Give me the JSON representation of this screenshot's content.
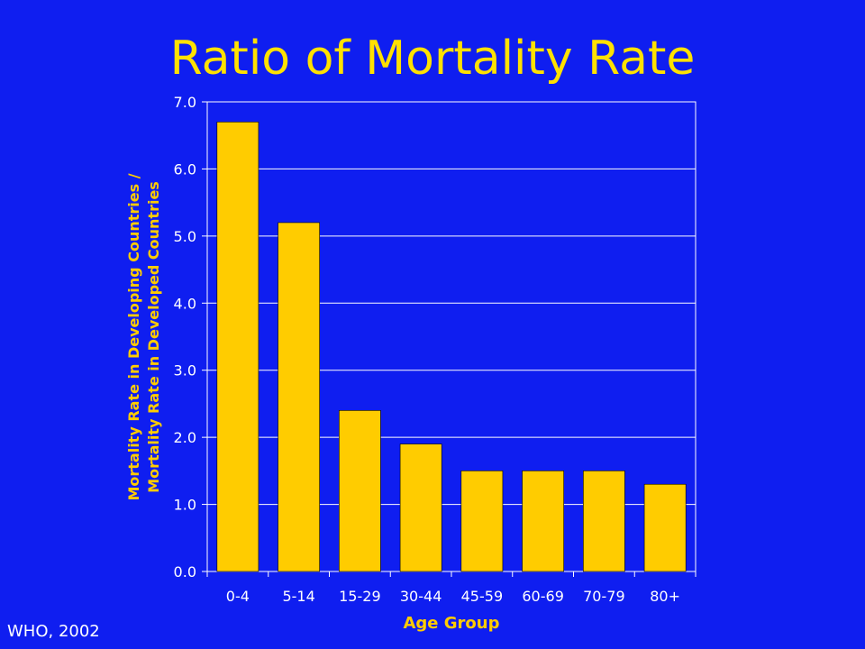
{
  "slide": {
    "title": "Ratio of Mortality Rate",
    "source": "WHO, 2002"
  },
  "colors": {
    "background": "#0f1ef0",
    "bar": "#ffcc00",
    "title": "#ffe100",
    "text": "#ffffff",
    "axis_title": "#ffcc00",
    "grid": "#ffffff"
  },
  "chart_data": {
    "type": "bar",
    "title": "Ratio of Mortality Rate",
    "categories": [
      "0-4",
      "5-14",
      "15-29",
      "30-44",
      "45-59",
      "60-69",
      "70-79",
      "80+"
    ],
    "values": [
      6.7,
      5.2,
      2.4,
      1.9,
      1.5,
      1.5,
      1.5,
      1.3
    ],
    "xlabel": "Age Group",
    "ylabel_lines": [
      "Mortality Rate in Developing Countries /",
      "Mortality Rate in Developed Countries"
    ],
    "ylim": [
      0,
      7
    ],
    "yticks": [
      "0.0",
      "1.0",
      "2.0",
      "3.0",
      "4.0",
      "5.0",
      "6.0",
      "7.0"
    ],
    "grid": true,
    "legend": "none"
  }
}
